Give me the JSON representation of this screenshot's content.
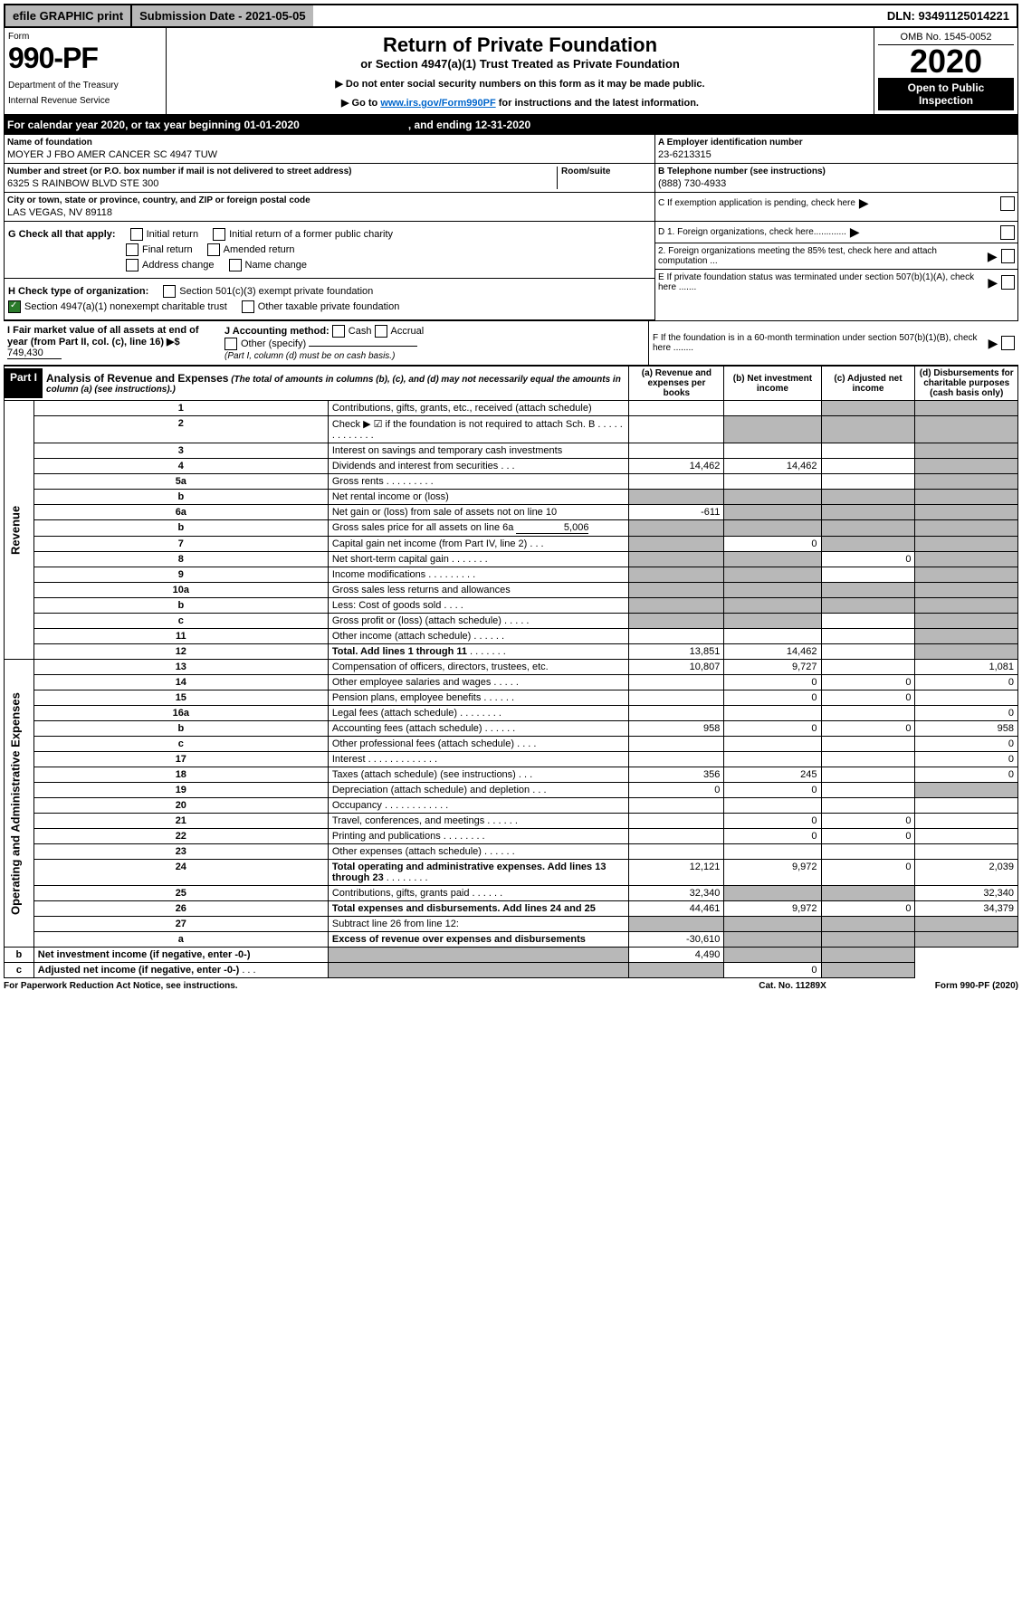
{
  "topbar": {
    "efile": "efile GRAPHIC print",
    "subm": "Submission Date - 2021-05-05",
    "dln": "DLN: 93491125014221"
  },
  "header": {
    "form_label": "Form",
    "form_no": "990-PF",
    "dept": "Department of the Treasury",
    "irs": "Internal Revenue Service",
    "title": "Return of Private Foundation",
    "sub": "or Section 4947(a)(1) Trust Treated as Private Foundation",
    "hint1": "▶ Do not enter social security numbers on this form as it may be made public.",
    "hint2_pre": "▶ Go to ",
    "hint2_link": "www.irs.gov/Form990PF",
    "hint2_post": " for instructions and the latest information.",
    "omb": "OMB No. 1545-0052",
    "year": "2020",
    "open": "Open to Public Inspection"
  },
  "calyear": {
    "left": "For calendar year 2020, or tax year beginning 01-01-2020",
    "right": ", and ending 12-31-2020"
  },
  "name": {
    "label": "Name of foundation",
    "value": "MOYER J FBO AMER CANCER SC 4947 TUW"
  },
  "ein": {
    "label": "A Employer identification number",
    "value": "23-6213315"
  },
  "addr": {
    "label": "Number and street (or P.O. box number if mail is not delivered to street address)",
    "room": "Room/suite",
    "value": "6325 S RAINBOW BLVD STE 300"
  },
  "tel": {
    "label": "B Telephone number (see instructions)",
    "value": "(888) 730-4933"
  },
  "city": {
    "label": "City or town, state or province, country, and ZIP or foreign postal code",
    "value": "LAS VEGAS, NV  89118"
  },
  "c": {
    "label": "C If exemption application is pending, check here"
  },
  "g": {
    "label": "G Check all that apply:",
    "initial": "Initial return",
    "initial_former": "Initial return of a former public charity",
    "final": "Final return",
    "amended": "Amended return",
    "addr_change": "Address change",
    "name_change": "Name change"
  },
  "d": {
    "d1": "D 1. Foreign organizations, check here.............",
    "d2": "2. Foreign organizations meeting the 85% test, check here and attach computation ..."
  },
  "h": {
    "label": "H Check type of organization:",
    "s501": "Section 501(c)(3) exempt private foundation",
    "s4947": "Section 4947(a)(1) nonexempt charitable trust",
    "other": "Other taxable private foundation"
  },
  "e": {
    "label": "E If private foundation status was terminated under section 507(b)(1)(A), check here ......."
  },
  "i": {
    "label": "I Fair market value of all assets at end of year (from Part II, col. (c), line 16) ▶$",
    "value": "749,430"
  },
  "j": {
    "label": "J Accounting method:",
    "cash": "Cash",
    "accrual": "Accrual",
    "other": "Other (specify)",
    "note": "(Part I, column (d) must be on cash basis.)"
  },
  "f": {
    "label": "F If the foundation is in a 60-month termination under section 507(b)(1)(B), check here ........"
  },
  "part1": {
    "title": "Part I",
    "desc": "Analysis of Revenue and Expenses",
    "desc_note": "(The total of amounts in columns (b), (c), and (d) may not necessarily equal the amounts in column (a) (see instructions).)",
    "col_a": "(a)   Revenue and expenses per books",
    "col_b": "(b)  Net investment income",
    "col_c": "(c)  Adjusted net income",
    "col_d": "(d)  Disbursements for charitable purposes (cash basis only)"
  },
  "rev_label": "Revenue",
  "exp_label": "Operating and Administrative Expenses",
  "rows": [
    {
      "n": "1",
      "d": "Contributions, gifts, grants, etc., received (attach schedule)",
      "a": "",
      "b": "",
      "c": "s",
      "ds": "s"
    },
    {
      "n": "2",
      "d": "Check ▶ ☑ if the foundation is not required to attach Sch. B",
      "dots": ". . . . . . . . . . . . .",
      "a": "",
      "b": "s",
      "c": "s",
      "ds": "s"
    },
    {
      "n": "3",
      "d": "Interest on savings and temporary cash investments",
      "a": "",
      "b": "",
      "c": "",
      "ds": "s"
    },
    {
      "n": "4",
      "d": "Dividends and interest from securities",
      "dots": ". . .",
      "a": "14,462",
      "b": "14,462",
      "c": "",
      "ds": "s"
    },
    {
      "n": "5a",
      "d": "Gross rents",
      "dots": ". . . . . . . . .",
      "a": "",
      "b": "",
      "c": "",
      "ds": "s"
    },
    {
      "n": "b",
      "d": "Net rental income or (loss)",
      "a": "s",
      "b": "s",
      "c": "s",
      "ds": "s"
    },
    {
      "n": "6a",
      "d": "Net gain or (loss) from sale of assets not on line 10",
      "a": "-611",
      "b": "s",
      "c": "s",
      "ds": "s"
    },
    {
      "n": "b",
      "d": "Gross sales price for all assets on line 6a",
      "inline": "5,006",
      "a": "s",
      "b": "s",
      "c": "s",
      "ds": "s"
    },
    {
      "n": "7",
      "d": "Capital gain net income (from Part IV, line 2)",
      "dots": ". . .",
      "a": "s",
      "b": "0",
      "c": "s",
      "ds": "s"
    },
    {
      "n": "8",
      "d": "Net short-term capital gain",
      "dots": ". . . . . . .",
      "a": "s",
      "b": "s",
      "c": "0",
      "ds": "s"
    },
    {
      "n": "9",
      "d": "Income modifications",
      "dots": ". . . . . . . . .",
      "a": "s",
      "b": "s",
      "c": "",
      "ds": "s"
    },
    {
      "n": "10a",
      "d": "Gross sales less returns and allowances",
      "a": "s",
      "b": "s",
      "c": "s",
      "ds": "s"
    },
    {
      "n": "b",
      "d": "Less: Cost of goods sold",
      "dots": ". . . .",
      "a": "s",
      "b": "s",
      "c": "s",
      "ds": "s"
    },
    {
      "n": "c",
      "d": "Gross profit or (loss) (attach schedule)",
      "dots": ". . . . .",
      "a": "s",
      "b": "s",
      "c": "",
      "ds": "s"
    },
    {
      "n": "11",
      "d": "Other income (attach schedule)",
      "dots": ". . . . . .",
      "a": "",
      "b": "",
      "c": "",
      "ds": "s"
    },
    {
      "n": "12",
      "d": "Total. Add lines 1 through 11",
      "dots": ". . . . . . .",
      "bold": true,
      "a": "13,851",
      "b": "14,462",
      "c": "",
      "ds": "s"
    },
    {
      "n": "13",
      "d": "Compensation of officers, directors, trustees, etc.",
      "a": "10,807",
      "b": "9,727",
      "c": "",
      "ds": "1,081"
    },
    {
      "n": "14",
      "d": "Other employee salaries and wages",
      "dots": ". . . . .",
      "a": "",
      "b": "0",
      "c": "0",
      "ds": "0"
    },
    {
      "n": "15",
      "d": "Pension plans, employee benefits",
      "dots": ". . . . . .",
      "a": "",
      "b": "0",
      "c": "0",
      "ds": ""
    },
    {
      "n": "16a",
      "d": "Legal fees (attach schedule)",
      "dots": ". . . . . . . .",
      "a": "",
      "b": "",
      "c": "",
      "ds": "0"
    },
    {
      "n": "b",
      "d": "Accounting fees (attach schedule)",
      "dots": ". . . . . .",
      "a": "958",
      "b": "0",
      "c": "0",
      "ds": "958"
    },
    {
      "n": "c",
      "d": "Other professional fees (attach schedule)",
      "dots": ". . . .",
      "a": "",
      "b": "",
      "c": "",
      "ds": "0"
    },
    {
      "n": "17",
      "d": "Interest",
      "dots": ". . . . . . . . . . . . .",
      "a": "",
      "b": "",
      "c": "",
      "ds": "0"
    },
    {
      "n": "18",
      "d": "Taxes (attach schedule) (see instructions)",
      "dots": ". . .",
      "a": "356",
      "b": "245",
      "c": "",
      "ds": "0"
    },
    {
      "n": "19",
      "d": "Depreciation (attach schedule) and depletion",
      "dots": ". . .",
      "a": "0",
      "b": "0",
      "c": "",
      "ds": "s"
    },
    {
      "n": "20",
      "d": "Occupancy",
      "dots": ". . . . . . . . . . . .",
      "a": "",
      "b": "",
      "c": "",
      "ds": ""
    },
    {
      "n": "21",
      "d": "Travel, conferences, and meetings",
      "dots": ". . . . . .",
      "a": "",
      "b": "0",
      "c": "0",
      "ds": ""
    },
    {
      "n": "22",
      "d": "Printing and publications",
      "dots": ". . . . . . . .",
      "a": "",
      "b": "0",
      "c": "0",
      "ds": ""
    },
    {
      "n": "23",
      "d": "Other expenses (attach schedule)",
      "dots": ". . . . . .",
      "a": "",
      "b": "",
      "c": "",
      "ds": ""
    },
    {
      "n": "24",
      "d": "Total operating and administrative expenses. Add lines 13 through 23",
      "dots": ". . . . . . . .",
      "bold": true,
      "a": "12,121",
      "b": "9,972",
      "c": "0",
      "ds": "2,039"
    },
    {
      "n": "25",
      "d": "Contributions, gifts, grants paid",
      "dots": ". . . . . .",
      "a": "32,340",
      "b": "s",
      "c": "s",
      "ds": "32,340"
    },
    {
      "n": "26",
      "d": "Total expenses and disbursements. Add lines 24 and 25",
      "bold": true,
      "a": "44,461",
      "b": "9,972",
      "c": "0",
      "ds": "34,379"
    },
    {
      "n": "27",
      "d": "Subtract line 26 from line 12:",
      "a": "s",
      "b": "s",
      "c": "s",
      "ds": "s"
    },
    {
      "n": "a",
      "d": "Excess of revenue over expenses and disbursements",
      "bold": true,
      "a": "-30,610",
      "b": "s",
      "c": "s",
      "ds": "s"
    },
    {
      "n": "b",
      "d": "Net investment income (if negative, enter -0-)",
      "bold": true,
      "a": "s",
      "b": "4,490",
      "c": "s",
      "ds": "s"
    },
    {
      "n": "c",
      "d": "Adjusted net income (if negative, enter -0-)",
      "dots": ". . .",
      "bold": true,
      "a": "s",
      "b": "s",
      "c": "0",
      "ds": "s"
    }
  ],
  "footer": {
    "left": "For Paperwork Reduction Act Notice, see instructions.",
    "mid": "Cat. No. 11289X",
    "right": "Form 990-PF (2020)"
  }
}
